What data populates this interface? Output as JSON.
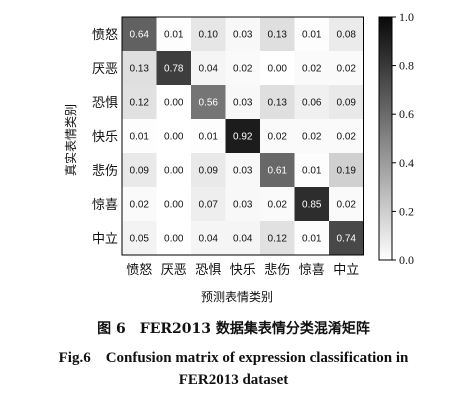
{
  "chart_data": {
    "type": "heatmap",
    "rows": [
      "愤怒",
      "厌恶",
      "恐惧",
      "快乐",
      "悲伤",
      "惊喜",
      "中立"
    ],
    "columns": [
      "愤怒",
      "厌恶",
      "恐惧",
      "快乐",
      "悲伤",
      "惊喜",
      "中立"
    ],
    "values": [
      [
        0.64,
        0.01,
        0.1,
        0.03,
        0.13,
        0.01,
        0.08
      ],
      [
        0.13,
        0.78,
        0.04,
        0.02,
        0.0,
        0.02,
        0.02
      ],
      [
        0.12,
        0.0,
        0.56,
        0.03,
        0.13,
        0.06,
        0.09
      ],
      [
        0.01,
        0.0,
        0.01,
        0.92,
        0.02,
        0.02,
        0.02
      ],
      [
        0.09,
        0.0,
        0.09,
        0.03,
        0.61,
        0.01,
        0.19
      ],
      [
        0.02,
        0.0,
        0.07,
        0.03,
        0.02,
        0.85,
        0.02
      ],
      [
        0.05,
        0.0,
        0.04,
        0.04,
        0.12,
        0.01,
        0.74
      ]
    ],
    "cell_labels": [
      [
        "0.64",
        "0.01",
        "0.10",
        "0.03",
        "0.13",
        "0.01",
        "0.08"
      ],
      [
        "0.13",
        "0.78",
        "0.04",
        "0.02",
        "0.00",
        "0.02",
        "0.02"
      ],
      [
        "0.12",
        "0.00",
        "0.56",
        "0.03",
        "0.13",
        "0.06",
        "0.09"
      ],
      [
        "0.01",
        "0.00",
        "0.01",
        "0.92",
        "0.02",
        "0.02",
        "0.02"
      ],
      [
        "0.09",
        "0.00",
        "0.09",
        "0.03",
        "0.61",
        "0.01",
        "0.19"
      ],
      [
        "0.02",
        "0.00",
        "0.07",
        "0.03",
        "0.02",
        "0.85",
        "0.02"
      ],
      [
        "0.05",
        "0.00",
        "0.04",
        "0.04",
        "0.12",
        "0.01",
        "0.74"
      ]
    ],
    "xlabel": "预测表情类别",
    "ylabel": "真实表情类别",
    "colorbar": {
      "range": [
        0.0,
        1.0
      ],
      "ticks": [
        "0.0",
        "0.2",
        "0.4",
        "0.6",
        "0.8",
        "1.0"
      ],
      "colormap": "gray-reversed (white = 0, black = 1)"
    }
  },
  "caption": {
    "cn": "图 6　FER2013 数据集表情分类混淆矩阵",
    "en_line1": "Fig.6　Confusion matrix of expression classification in",
    "en_line2": "FER2013 dataset"
  }
}
